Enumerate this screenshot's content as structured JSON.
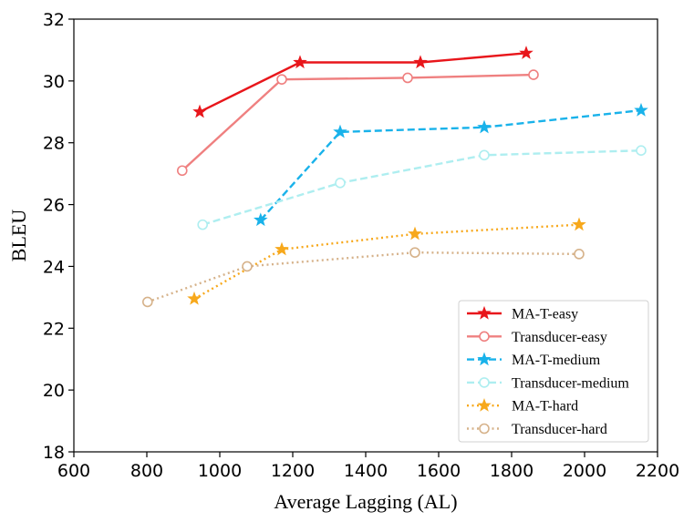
{
  "chart_data": {
    "type": "line",
    "title": "",
    "xlabel": "Average Lagging (AL)",
    "ylabel": "BLEU",
    "xlim": [
      600,
      2200
    ],
    "ylim": [
      18,
      32
    ],
    "xticks": [
      600,
      800,
      1000,
      1200,
      1400,
      1600,
      1800,
      2000,
      2200
    ],
    "yticks": [
      18,
      20,
      22,
      24,
      26,
      28,
      30,
      32
    ],
    "grid": false,
    "legend_position": "bottom-right",
    "series": [
      {
        "name": "MA-T-easy",
        "color": "#e8161b",
        "line_style": "solid",
        "marker": "star",
        "x": [
          945,
          1220,
          1550,
          1840
        ],
        "y": [
          29.0,
          30.6,
          30.6,
          30.9
        ]
      },
      {
        "name": "Transducer-easy",
        "color": "#ef8080",
        "line_style": "solid",
        "marker": "hollow-circle",
        "x": [
          897,
          1170,
          1515,
          1860
        ],
        "y": [
          27.1,
          30.05,
          30.1,
          30.2
        ]
      },
      {
        "name": "MA-T-medium",
        "color": "#19b2ea",
        "line_style": "dashed",
        "marker": "star",
        "x": [
          1112,
          1330,
          1725,
          2155
        ],
        "y": [
          25.5,
          28.35,
          28.5,
          29.05
        ]
      },
      {
        "name": "Transducer-medium",
        "color": "#aeeef0",
        "line_style": "dashed",
        "marker": "hollow-circle",
        "x": [
          953,
          1330,
          1725,
          2155
        ],
        "y": [
          25.35,
          26.7,
          27.6,
          27.75
        ]
      },
      {
        "name": "MA-T-hard",
        "color": "#f7a81b",
        "line_style": "dotted",
        "marker": "star",
        "x": [
          930,
          1170,
          1535,
          1985
        ],
        "y": [
          22.95,
          24.55,
          25.05,
          25.35
        ]
      },
      {
        "name": "Transducer-hard",
        "color": "#d6b28a",
        "line_style": "dotted",
        "marker": "hollow-circle",
        "x": [
          802,
          1075,
          1535,
          1985
        ],
        "y": [
          22.85,
          24.0,
          24.45,
          24.4
        ]
      }
    ]
  }
}
